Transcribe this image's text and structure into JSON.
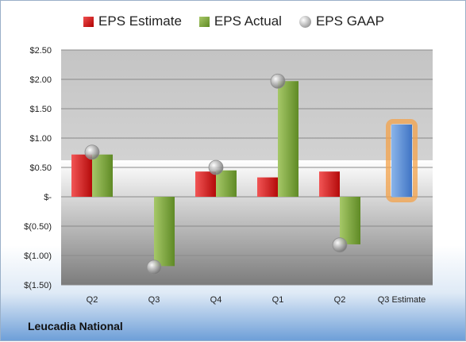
{
  "legend": {
    "estimate": "EPS Estimate",
    "actual": "EPS Actual",
    "gaap": "EPS GAAP"
  },
  "company": "Leucadia National",
  "colors": {
    "estimate": "#d42020",
    "actual": "#7fa83d",
    "gaap": "#b8b8b8",
    "projection": "#5b8ed6",
    "projection_glow": "#f3a24a"
  },
  "chart_data": {
    "type": "bar",
    "categories": [
      "Q2",
      "Q3",
      "Q4",
      "Q1",
      "Q2",
      "Q3 Estimate"
    ],
    "series": [
      {
        "name": "EPS Estimate",
        "values": [
          0.72,
          null,
          0.43,
          0.33,
          0.43,
          1.23
        ]
      },
      {
        "name": "EPS Actual",
        "values": [
          0.72,
          -1.18,
          0.45,
          1.97,
          -0.81,
          null
        ]
      },
      {
        "name": "EPS GAAP",
        "values": [
          0.76,
          -1.2,
          0.5,
          1.97,
          -0.82,
          null
        ]
      }
    ],
    "ylim": [
      -1.5,
      2.5
    ],
    "yticks": [
      2.5,
      2.0,
      1.5,
      1.0,
      0.5,
      0,
      -0.5,
      -1.0,
      -1.5
    ],
    "ytick_labels": [
      "$2.50",
      "$2.00",
      "$1.50",
      "$1.00",
      "$0.50",
      "$-",
      "$(0.50)",
      "$(1.00)",
      "$(1.50)"
    ],
    "grid": true,
    "legend_position": "top"
  }
}
